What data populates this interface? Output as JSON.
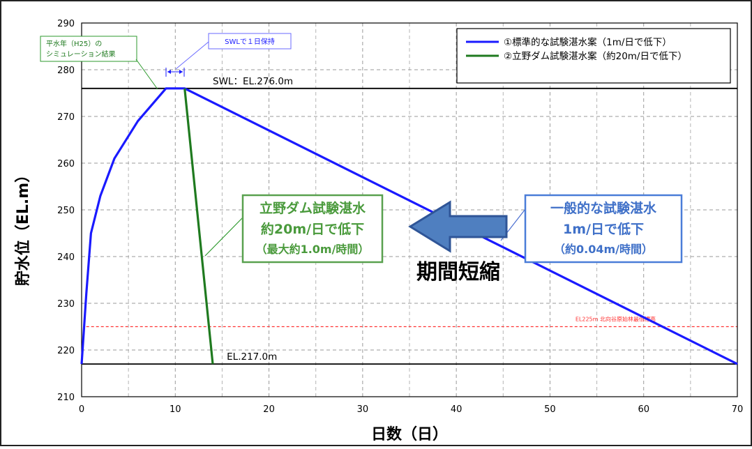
{
  "chart_data": {
    "type": "line",
    "xlabel": "日数（日）",
    "ylabel": "貯水位（EL.m）",
    "xlim": [
      0,
      70
    ],
    "ylim": [
      210,
      290
    ],
    "x_ticks": [
      0,
      10,
      20,
      30,
      40,
      50,
      60,
      70
    ],
    "y_ticks": [
      210,
      220,
      230,
      240,
      250,
      260,
      270,
      280,
      290
    ],
    "grid": true,
    "legend_position": "top-right",
    "series": [
      {
        "name": "①標準的な試験湛水案（1m/日で低下）",
        "color": "#1a1aff",
        "points": [
          [
            0,
            217
          ],
          [
            0.5,
            232
          ],
          [
            1,
            245
          ],
          [
            2,
            253
          ],
          [
            3.5,
            261
          ],
          [
            6,
            269
          ],
          [
            9,
            276
          ],
          [
            11,
            276
          ],
          [
            70,
            217
          ]
        ]
      },
      {
        "name": "②立野ダム試験湛水案（約20m/日で低下）",
        "color": "#1f7a1f",
        "points": [
          [
            11,
            276
          ],
          [
            14,
            217
          ]
        ]
      }
    ],
    "reference_lines": [
      {
        "label": "SWL：EL.276.0m",
        "y": 276,
        "color": "#000000"
      },
      {
        "label": "EL.217.0m",
        "y": 217,
        "color": "#000000"
      },
      {
        "label": "EL225m 北向谷原始林最低標高",
        "y": 225,
        "color": "#ff3333"
      }
    ],
    "annotations": {
      "simulation_note": [
        "平水年（H25）の",
        "シミュレーション結果"
      ],
      "swl_hold": "SWLで１日保持",
      "tateno_box": [
        "立野ダム試験湛水",
        "約20m/日で低下",
        "（最大約1.0m/時間）"
      ],
      "general_box": [
        "一般的な試験湛水",
        "1m/日で低下",
        "（約0.04m/時間）"
      ],
      "shortening": "期間短縮"
    }
  }
}
